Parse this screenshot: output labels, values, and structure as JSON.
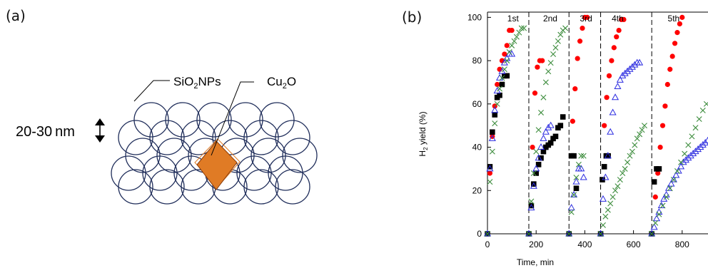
{
  "panel_a": {
    "label": "(a)",
    "sio2_label_main": "SiO",
    "sio2_label_sub": "2",
    "sio2_label_tail": "NPs",
    "cu2o_label_main": "Cu",
    "cu2o_label_sub": "2",
    "cu2o_label_tail": "O",
    "size_label": "20-30 nm",
    "circle_color": "#1f2d5a",
    "cube_color": "#e07b25"
  },
  "panel_b": {
    "label": "(b)"
  },
  "chart_data": {
    "type": "scatter",
    "xlabel": "Time, min",
    "ylabel_main": "H",
    "ylabel_sub": "2",
    "ylabel_tail": " yield (%)",
    "xlim": [
      0,
      1000
    ],
    "ylim": [
      0,
      110
    ],
    "xticks": [
      0,
      200,
      400,
      600,
      800
    ],
    "yticks": [
      0,
      20,
      40,
      60,
      80,
      100
    ],
    "run_boundaries": [
      170,
      335,
      465,
      675
    ],
    "run_labels": [
      {
        "text": "1st",
        "x": 105
      },
      {
        "text": "2nd",
        "x": 258
      },
      {
        "text": "3rd",
        "x": 405
      },
      {
        "text": "4th",
        "x": 535
      },
      {
        "text": "5th",
        "x": 765
      }
    ],
    "series": [
      {
        "marker": "circle",
        "color": "#ff0000",
        "values": [
          [
            0,
            0
          ],
          [
            10,
            28
          ],
          [
            20,
            45
          ],
          [
            30,
            59
          ],
          [
            40,
            69
          ],
          [
            50,
            76
          ],
          [
            60,
            80
          ],
          [
            70,
            83
          ],
          [
            80,
            87
          ],
          [
            90,
            94
          ],
          [
            100,
            94
          ],
          [
            170,
            0
          ],
          [
            185,
            40
          ],
          [
            195,
            65
          ],
          [
            205,
            77
          ],
          [
            215,
            80
          ],
          [
            225,
            80
          ],
          [
            335,
            0
          ],
          [
            350,
            52
          ],
          [
            360,
            67
          ],
          [
            370,
            81
          ],
          [
            380,
            89
          ],
          [
            390,
            95
          ],
          [
            400,
            100
          ],
          [
            410,
            100
          ],
          [
            465,
            0
          ],
          [
            480,
            50
          ],
          [
            490,
            63
          ],
          [
            500,
            73
          ],
          [
            510,
            80
          ],
          [
            520,
            86
          ],
          [
            530,
            91
          ],
          [
            540,
            94
          ],
          [
            550,
            99
          ],
          [
            560,
            99
          ],
          [
            675,
            0
          ],
          [
            690,
            17
          ],
          [
            700,
            28
          ],
          [
            710,
            40
          ],
          [
            720,
            50
          ],
          [
            730,
            59
          ],
          [
            740,
            69
          ],
          [
            750,
            76
          ],
          [
            760,
            82
          ],
          [
            770,
            88
          ],
          [
            780,
            93
          ],
          [
            790,
            97
          ],
          [
            800,
            100
          ]
        ]
      },
      {
        "marker": "square",
        "color": "#000000",
        "values": [
          [
            0,
            0
          ],
          [
            10,
            31
          ],
          [
            20,
            47
          ],
          [
            30,
            55
          ],
          [
            40,
            63
          ],
          [
            50,
            64
          ],
          [
            60,
            69
          ],
          [
            70,
            73
          ],
          [
            80,
            73
          ],
          [
            170,
            0
          ],
          [
            180,
            13
          ],
          [
            190,
            23
          ],
          [
            200,
            28
          ],
          [
            210,
            32
          ],
          [
            220,
            35
          ],
          [
            230,
            38
          ],
          [
            240,
            40
          ],
          [
            250,
            41
          ],
          [
            260,
            42
          ],
          [
            270,
            44
          ],
          [
            280,
            45
          ],
          [
            290,
            49
          ],
          [
            300,
            50
          ],
          [
            310,
            54
          ],
          [
            335,
            0
          ],
          [
            345,
            36
          ],
          [
            355,
            36
          ],
          [
            365,
            21
          ],
          [
            465,
            0
          ],
          [
            472,
            25
          ],
          [
            480,
            31
          ],
          [
            488,
            36
          ],
          [
            496,
            36
          ],
          [
            675,
            0
          ],
          [
            685,
            24
          ],
          [
            695,
            30
          ],
          [
            705,
            30
          ]
        ]
      },
      {
        "marker": "triangle",
        "color": "#2b2be0",
        "values": [
          [
            0,
            0
          ],
          [
            10,
            30
          ],
          [
            20,
            44
          ],
          [
            30,
            57
          ],
          [
            40,
            66
          ],
          [
            50,
            72
          ],
          [
            60,
            75
          ],
          [
            70,
            79
          ],
          [
            80,
            81
          ],
          [
            90,
            83
          ],
          [
            100,
            83
          ],
          [
            170,
            0
          ],
          [
            180,
            12
          ],
          [
            190,
            22
          ],
          [
            200,
            30
          ],
          [
            210,
            35
          ],
          [
            220,
            40
          ],
          [
            230,
            44
          ],
          [
            240,
            47
          ],
          [
            250,
            49
          ],
          [
            260,
            50
          ],
          [
            335,
            0
          ],
          [
            345,
            12
          ],
          [
            355,
            18
          ],
          [
            365,
            24
          ],
          [
            375,
            30
          ],
          [
            385,
            30
          ],
          [
            395,
            26
          ],
          [
            465,
            0
          ],
          [
            475,
            16
          ],
          [
            485,
            26
          ],
          [
            495,
            36
          ],
          [
            505,
            47
          ],
          [
            515,
            56
          ],
          [
            525,
            63
          ],
          [
            535,
            68
          ],
          [
            545,
            71
          ],
          [
            555,
            73
          ],
          [
            565,
            74
          ],
          [
            575,
            75
          ],
          [
            585,
            76
          ],
          [
            595,
            77
          ],
          [
            605,
            78
          ],
          [
            615,
            79
          ],
          [
            625,
            79
          ],
          [
            675,
            0
          ],
          [
            685,
            3
          ],
          [
            695,
            7
          ],
          [
            705,
            10
          ],
          [
            715,
            13
          ],
          [
            725,
            16
          ],
          [
            735,
            18
          ],
          [
            745,
            21
          ],
          [
            755,
            23
          ],
          [
            765,
            25
          ],
          [
            775,
            27
          ],
          [
            785,
            29
          ],
          [
            795,
            31
          ],
          [
            805,
            33
          ],
          [
            815,
            34
          ],
          [
            825,
            35
          ],
          [
            835,
            36
          ],
          [
            845,
            37
          ],
          [
            855,
            38
          ],
          [
            865,
            39
          ],
          [
            875,
            40
          ],
          [
            885,
            41
          ],
          [
            895,
            42
          ],
          [
            905,
            43
          ],
          [
            915,
            44
          ],
          [
            925,
            45
          ]
        ]
      },
      {
        "marker": "cross",
        "color": "#3c8c3c",
        "values": [
          [
            0,
            0
          ],
          [
            10,
            24
          ],
          [
            20,
            38
          ],
          [
            30,
            51
          ],
          [
            40,
            60
          ],
          [
            50,
            67
          ],
          [
            60,
            72
          ],
          [
            70,
            76
          ],
          [
            80,
            80
          ],
          [
            90,
            84
          ],
          [
            100,
            87
          ],
          [
            110,
            89
          ],
          [
            120,
            91
          ],
          [
            130,
            93
          ],
          [
            140,
            95
          ],
          [
            150,
            95
          ],
          [
            170,
            0
          ],
          [
            180,
            15
          ],
          [
            190,
            28
          ],
          [
            200,
            38
          ],
          [
            210,
            48
          ],
          [
            220,
            56
          ],
          [
            230,
            63
          ],
          [
            240,
            70
          ],
          [
            250,
            75
          ],
          [
            260,
            79
          ],
          [
            270,
            83
          ],
          [
            280,
            86
          ],
          [
            290,
            89
          ],
          [
            300,
            92
          ],
          [
            310,
            94
          ],
          [
            320,
            95
          ],
          [
            335,
            0
          ],
          [
            345,
            10
          ],
          [
            355,
            18
          ],
          [
            365,
            26
          ],
          [
            375,
            32
          ],
          [
            385,
            36
          ],
          [
            395,
            36
          ],
          [
            465,
            0
          ],
          [
            475,
            4
          ],
          [
            485,
            8
          ],
          [
            495,
            11
          ],
          [
            505,
            14
          ],
          [
            515,
            17
          ],
          [
            525,
            20
          ],
          [
            535,
            22
          ],
          [
            545,
            25
          ],
          [
            555,
            28
          ],
          [
            565,
            30
          ],
          [
            575,
            33
          ],
          [
            585,
            36
          ],
          [
            595,
            38
          ],
          [
            605,
            41
          ],
          [
            615,
            44
          ],
          [
            625,
            46
          ],
          [
            635,
            48
          ],
          [
            645,
            50
          ],
          [
            675,
            0
          ],
          [
            690,
            5
          ],
          [
            705,
            9
          ],
          [
            720,
            13
          ],
          [
            735,
            17
          ],
          [
            750,
            21
          ],
          [
            765,
            25
          ],
          [
            780,
            29
          ],
          [
            795,
            33
          ],
          [
            810,
            37
          ],
          [
            825,
            41
          ],
          [
            840,
            45
          ],
          [
            855,
            49
          ],
          [
            870,
            53
          ],
          [
            885,
            57
          ],
          [
            900,
            60
          ]
        ]
      }
    ]
  }
}
